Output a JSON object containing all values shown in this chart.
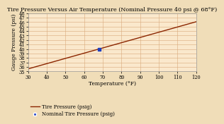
{
  "title": "Tire Pressure Versus Air Temperature (Nominal Pressure 40 psi @ 68°F)",
  "xlabel": "Temperature (°F)",
  "ylabel": "Gauge Pressure (psi)",
  "xlim": [
    30,
    120
  ],
  "ylim": [
    35,
    48
  ],
  "xticks": [
    30,
    40,
    50,
    60,
    70,
    80,
    90,
    100,
    110,
    120
  ],
  "yticks": [
    35,
    36,
    37,
    38,
    39,
    40,
    41,
    42,
    43,
    44,
    45,
    46,
    47,
    48
  ],
  "nominal_temp": 68,
  "nominal_pressure": 40,
  "line_color": "#8B2500",
  "marker_color": "#1E3EBF",
  "background_color": "#FAE8CC",
  "grid_color": "#D9A87A",
  "outer_bg": "#F0DDB8",
  "title_fontsize": 5.8,
  "axis_label_fontsize": 5.5,
  "tick_fontsize": 4.8,
  "legend_fontsize": 5.0,
  "slope": 0.1167,
  "intercept": 32.067
}
